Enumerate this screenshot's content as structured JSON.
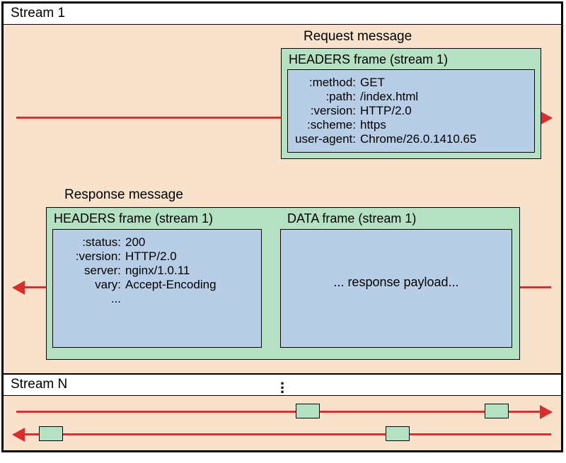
{
  "diagram": {
    "type": "network-flow",
    "colors": {
      "stream_bg": "#f9e2cb",
      "frame_bg": "#b5e1c3",
      "body_bg": "#b8cee6",
      "arrow": "#d92e2e",
      "border": "#000000",
      "label_bg": "#ffffff"
    },
    "fonts": {
      "label": 19,
      "frame_title": 18,
      "kv": 17
    }
  },
  "stream1": {
    "label": "Stream 1",
    "request": {
      "label": "Request message",
      "headers_frame": {
        "title": "HEADERS frame (stream 1)",
        "rows": [
          {
            "k": ":method:",
            "v": "GET"
          },
          {
            "k": ":path:",
            "v": "/index.html"
          },
          {
            "k": ":version:",
            "v": "HTTP/2.0"
          },
          {
            "k": ":scheme:",
            "v": "https"
          },
          {
            "k": "user-agent:",
            "v": "Chrome/26.0.1410.65"
          }
        ]
      }
    },
    "response": {
      "label": "Response message",
      "headers_frame": {
        "title": "HEADERS frame (stream 1)",
        "rows": [
          {
            "k": ":status:",
            "v": "200"
          },
          {
            "k": ":version:",
            "v": "HTTP/2.0"
          },
          {
            "k": "server:",
            "v": "nginx/1.0.11"
          },
          {
            "k": "vary:",
            "v": "Accept-Encoding"
          },
          {
            "k": "...",
            "v": ""
          }
        ]
      },
      "data_frame": {
        "title": "DATA frame (stream 1)",
        "body": "... response payload..."
      }
    }
  },
  "streamN": {
    "label": "Stream N"
  }
}
